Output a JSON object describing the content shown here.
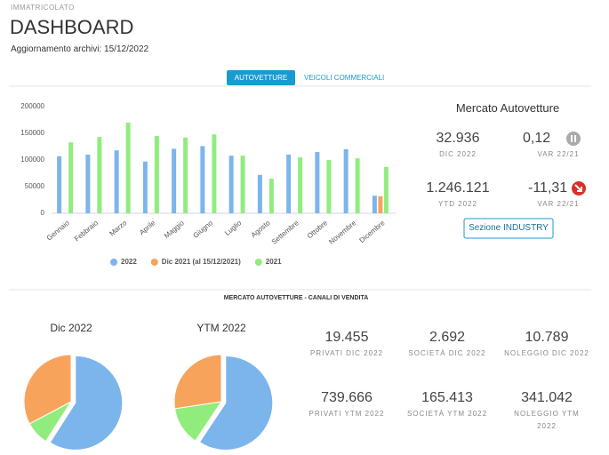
{
  "header": {
    "section": "IMMATRICOLATO",
    "title": "DASHBOARD",
    "update": "Aggiornamento archivi: 15/12/2022"
  },
  "tabs": [
    "AUTOVETTURE",
    "VEICOLI COMMERCIALI"
  ],
  "bar_chart": {
    "type": "bar",
    "categories": [
      "Gennaio",
      "Febbraio",
      "Marzo",
      "Aprile",
      "Maggio",
      "Giugno",
      "Luglio",
      "Agosto",
      "Settembre",
      "Ottobre",
      "Novembre",
      "Dicembre"
    ],
    "series": [
      {
        "name": "2022",
        "color": "#7cb5ec",
        "values": [
          107000,
          110000,
          118000,
          97000,
          121000,
          126000,
          108000,
          72000,
          110000,
          115000,
          120000,
          33000
        ]
      },
      {
        "name": "Dic 2021 (al 15/12/2021)",
        "color": "#f7a35c",
        "values": [
          null,
          null,
          null,
          null,
          null,
          null,
          null,
          null,
          null,
          null,
          null,
          32000
        ]
      },
      {
        "name": "2021",
        "color": "#90ed7d",
        "values": [
          133000,
          143000,
          170000,
          145000,
          142000,
          148000,
          108000,
          65000,
          105000,
          100000,
          103000,
          87000
        ]
      }
    ],
    "ylim": [
      0,
      200000
    ],
    "yticks": [
      0,
      50000,
      100000,
      150000,
      200000
    ]
  },
  "market": {
    "title": "Mercato Autovetture",
    "kpis": [
      {
        "value": "32.936",
        "label": "DIC 2022"
      },
      {
        "value": "0,12",
        "label": "VAR 22/21"
      },
      {
        "value": "1.246.121",
        "label": "YTD 2022"
      },
      {
        "value": "-11,31",
        "label": "VAR 22/21"
      }
    ],
    "button": "Sezione INDUSTRY"
  },
  "channels": {
    "title": "MERCATO AUTOVETTURE - CANALI DI VENDITA",
    "pies": [
      {
        "type": "pie",
        "title": "Dic 2022",
        "colors": [
          "#7cb5ec",
          "#90ed7d",
          "#f7a35c"
        ],
        "values": [
          19455,
          2692,
          10789
        ]
      },
      {
        "type": "pie",
        "title": "YTM 2022",
        "colors": [
          "#7cb5ec",
          "#90ed7d",
          "#f7a35c"
        ],
        "values": [
          739666,
          165413,
          341042
        ]
      }
    ],
    "kpis": [
      {
        "value": "19.455",
        "label": "PRIVATI DIC 2022"
      },
      {
        "value": "2.692",
        "label": "SOCIETÀ DIC 2022"
      },
      {
        "value": "10.789",
        "label": "NOLEGGIO DIC 2022"
      },
      {
        "value": "739.666",
        "label": "PRIVATI YTM 2022"
      },
      {
        "value": "165.413",
        "label": "SOCIETÀ YTM 2022"
      },
      {
        "value": "341.042",
        "label": "NOLEGGIO YTM 2022"
      }
    ]
  }
}
